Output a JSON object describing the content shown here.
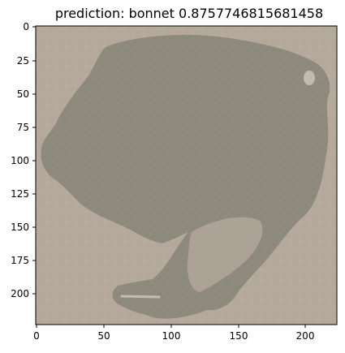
{
  "figure": {
    "title": "prediction: bonnet 0.8757746815681458",
    "image_semantic": "bonnet-like object silhouette (adversarial/feature visualization texture)",
    "x_ticks": [
      "0",
      "50",
      "100",
      "150",
      "200"
    ],
    "y_ticks": [
      "0",
      "25",
      "50",
      "75",
      "100",
      "125",
      "150",
      "175",
      "200"
    ],
    "x_range": [
      0,
      224
    ],
    "y_range": [
      0,
      224
    ],
    "colors": {
      "background": "#b4a99b",
      "object": "#8f8a7e",
      "object_dark": "#7f7a6f",
      "frame": "#000000"
    }
  }
}
